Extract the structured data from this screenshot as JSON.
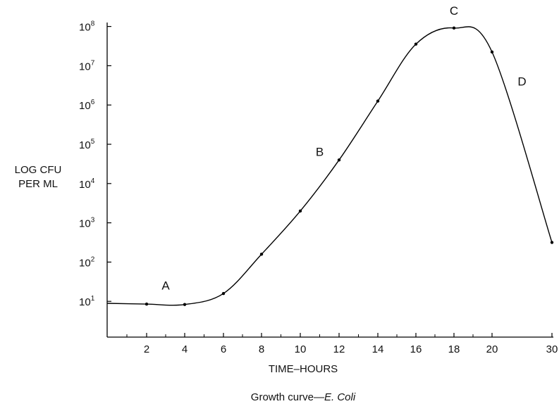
{
  "chart_data": {
    "type": "line",
    "title": "",
    "caption_prefix": "Growth curve—",
    "caption_italic": "E. Coli",
    "xlabel": "TIME–HOURS",
    "ylabel_line1": "LOG CFU",
    "ylabel_line2": "PER ML",
    "x_ticks": [
      "2",
      "4",
      "6",
      "8",
      "10",
      "12",
      "14",
      "16",
      "18",
      "20",
      "30"
    ],
    "y_ticks": [
      {
        "base": "10",
        "exp": "1"
      },
      {
        "base": "10",
        "exp": "2"
      },
      {
        "base": "10",
        "exp": "3"
      },
      {
        "base": "10",
        "exp": "4"
      },
      {
        "base": "10",
        "exp": "5"
      },
      {
        "base": "10",
        "exp": "6"
      },
      {
        "base": "10",
        "exp": "7"
      },
      {
        "base": "10",
        "exp": "8"
      }
    ],
    "y_scale": "log",
    "ylim_exp": [
      0,
      8.1
    ],
    "x": [
      0,
      2,
      4,
      6,
      8,
      10,
      12,
      14,
      16,
      18,
      20,
      30
    ],
    "y_log10": [
      0.95,
      0.93,
      0.92,
      1.2,
      2.2,
      3.3,
      4.6,
      6.1,
      7.55,
      7.96,
      7.35,
      2.5
    ],
    "phases": [
      {
        "label": "A",
        "x": 3,
        "y_log10": 1.3
      },
      {
        "label": "B",
        "x": 11,
        "y_log10": 4.7
      },
      {
        "label": "C",
        "x": 18,
        "y_log10": 8.3
      },
      {
        "label": "D",
        "x": 25,
        "y_log10": 6.5
      }
    ],
    "grid": false,
    "line_color": "#000000"
  }
}
